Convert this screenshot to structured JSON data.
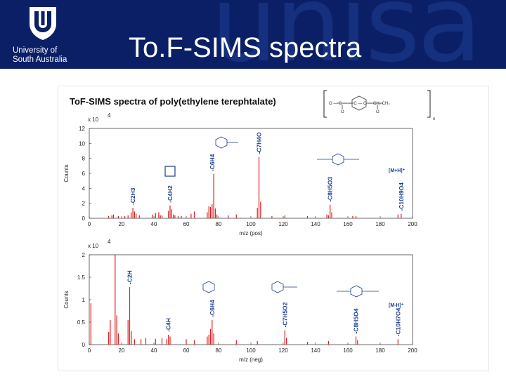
{
  "header": {
    "watermark": "unisa",
    "university_line1": "University of",
    "university_line2": "South Australia",
    "slide_title": "To.F-SIMS spectra",
    "logo_icon": "unisa-shield-logo",
    "bg_color": "#0b1f66"
  },
  "figure": {
    "title": "ToF-SIMS spectra of poly(ethylene terephtalate)",
    "repeat_unit": {
      "chain": "O — C — — C — O — CH₂ CH₂",
      "subscript": "n",
      "carbonyl": "O"
    }
  },
  "chart_data": [
    {
      "type": "bar",
      "title": "",
      "xlabel": "m/z (pos)",
      "ylabel": "Counts",
      "y_multiplier": "x 10",
      "y_multiplier_exp": "4",
      "xlim": [
        0,
        200
      ],
      "ylim": [
        0,
        12
      ],
      "xticks": [
        "0",
        "20",
        "40",
        "60",
        "80",
        "100",
        "120",
        "140",
        "160",
        "180",
        "200"
      ],
      "yticks": [
        "0",
        "2",
        "4",
        "6",
        "8",
        "10",
        "12"
      ],
      "color": "#e02020",
      "x": [
        12,
        14,
        15,
        18,
        22,
        24,
        26,
        27,
        28,
        29,
        31,
        39,
        41,
        43,
        44,
        45,
        49,
        50,
        51,
        52,
        53,
        55,
        57,
        63,
        65,
        73,
        74,
        75,
        76,
        77,
        78,
        79,
        86,
        91,
        104,
        105,
        106,
        113,
        121,
        135,
        147,
        148,
        149,
        150,
        163,
        165,
        191,
        193
      ],
      "values": [
        0.3,
        0.4,
        0.5,
        0.3,
        0.3,
        0.4,
        0.8,
        1.4,
        0.9,
        0.6,
        0.4,
        0.5,
        0.7,
        0.8,
        0.4,
        0.4,
        1.0,
        1.7,
        1.2,
        0.5,
        0.4,
        0.3,
        0.3,
        0.6,
        0.9,
        0.8,
        1.6,
        1.5,
        1.9,
        5.9,
        1.3,
        0.5,
        0.4,
        0.5,
        1.4,
        8.2,
        2.2,
        0.3,
        0.4,
        0.3,
        0.5,
        0.4,
        1.8,
        0.8,
        0.3,
        0.3,
        0.5,
        0.6
      ],
      "annotations": [
        {
          "text": "-C2H3",
          "x": 27
        },
        {
          "text": "-C4H2",
          "x": 50
        },
        {
          "text": "-C6H4",
          "x": 76
        },
        {
          "text": "-C7H4O",
          "x": 105
        },
        {
          "text": "-C8H5O3",
          "x": 149
        },
        {
          "text": "-C10H9O4",
          "x": 193
        }
      ],
      "label_mh": "[M+H]⁺"
    },
    {
      "type": "bar",
      "title": "",
      "xlabel": "m/z (neg)",
      "ylabel": "Counts",
      "y_multiplier": "x 10",
      "y_multiplier_exp": "4",
      "xlim": [
        0,
        200
      ],
      "ylim": [
        0,
        2
      ],
      "xticks": [
        "0",
        "20",
        "40",
        "60",
        "80",
        "100",
        "120",
        "140",
        "160",
        "180",
        "200"
      ],
      "yticks": [
        "0",
        "0.5",
        "1",
        "1.5",
        "2"
      ],
      "color": "#e02020",
      "x": [
        1,
        12,
        13,
        16,
        17,
        18,
        24,
        25,
        26,
        28,
        32,
        35,
        41,
        45,
        48,
        49,
        50,
        60,
        65,
        73,
        74,
        75,
        76,
        77,
        91,
        104,
        121,
        122,
        135,
        148,
        165,
        166,
        191
      ],
      "values": [
        0.92,
        0.28,
        0.55,
        2.0,
        0.65,
        0.25,
        0.55,
        1.28,
        0.3,
        0.12,
        0.12,
        0.15,
        0.13,
        0.15,
        0.12,
        0.22,
        0.18,
        0.12,
        0.1,
        0.18,
        0.22,
        0.35,
        0.55,
        0.25,
        0.1,
        0.08,
        0.32,
        0.15,
        0.06,
        0.08,
        0.18,
        0.1,
        0.12
      ],
      "annotations": [
        {
          "text": "-C2H",
          "x": 25
        },
        {
          "text": "-C4H",
          "x": 49
        },
        {
          "text": "-C6H4",
          "x": 76
        },
        {
          "text": "-C7H5O2",
          "x": 121
        },
        {
          "text": "-C8H5O4",
          "x": 165
        },
        {
          "text": "-C10H7O4",
          "x": 191
        }
      ],
      "label_mh": "[M-H]⁺"
    }
  ]
}
